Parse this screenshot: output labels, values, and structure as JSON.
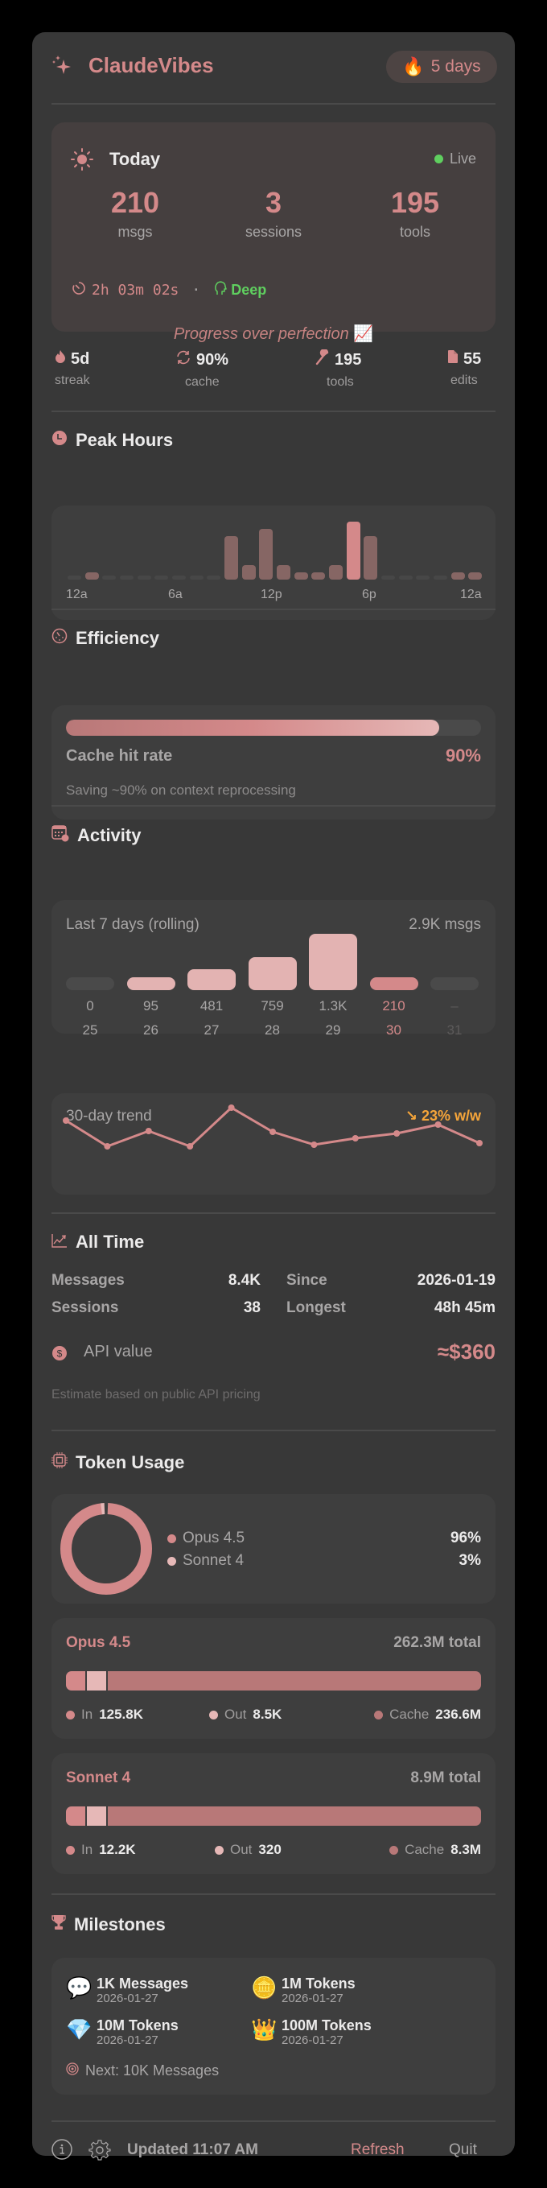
{
  "app": {
    "title": "ClaudeVibes",
    "streak_badge": "5 days",
    "icons": {
      "logo": "sparkles-icon",
      "streak": "fire-emoji"
    },
    "colors": {
      "accent": "#d4898a",
      "accent_light": "#e6b8b7",
      "accent_dark": "#b87878",
      "live": "#5fcf5f",
      "warning": "#f5a53a",
      "panel_bg": "#383838",
      "card_bg": "#3e3e3e"
    }
  },
  "today": {
    "title": "Today",
    "live_label": "Live",
    "stats": [
      {
        "value": "210",
        "label": "msgs"
      },
      {
        "value": "3",
        "label": "sessions"
      },
      {
        "value": "195",
        "label": "tools"
      }
    ],
    "duration": "2h 03m 02s",
    "separator": "·",
    "mode": "Deep",
    "quote": "Progress over perfection",
    "quote_emoji": "📈"
  },
  "mini_stats": [
    {
      "icon": "flame-icon",
      "value": "5d",
      "label": "streak"
    },
    {
      "icon": "refresh-icon",
      "value": "90%",
      "label": "cache"
    },
    {
      "icon": "wrench-icon",
      "value": "195",
      "label": "tools"
    },
    {
      "icon": "document-icon",
      "value": "55",
      "label": "edits"
    }
  ],
  "peak_hours": {
    "title": "Peak Hours",
    "axis_labels": [
      "12a",
      "6a",
      "12p",
      "6p",
      "12a"
    ],
    "values": [
      0,
      1,
      0,
      0,
      0,
      0,
      0,
      0,
      0,
      6,
      2,
      7,
      2,
      1,
      1,
      2,
      8,
      6,
      0,
      0,
      0,
      0,
      1,
      1
    ],
    "peak_index": 16
  },
  "efficiency": {
    "title": "Efficiency",
    "label": "Cache hit rate",
    "value": "90%",
    "percent": 90,
    "note": "Saving ~90% on context reprocessing"
  },
  "activity": {
    "title": "Activity",
    "week_label": "Last 7 days (rolling)",
    "week_total": "2.9K msgs",
    "days": [
      {
        "day": "25",
        "value": "0",
        "count": 0
      },
      {
        "day": "26",
        "value": "95",
        "count": 95
      },
      {
        "day": "27",
        "value": "481",
        "count": 481
      },
      {
        "day": "28",
        "value": "759",
        "count": 759
      },
      {
        "day": "29",
        "value": "1.3K",
        "count": 1300
      },
      {
        "day": "30",
        "value": "210",
        "count": 210,
        "today": true
      },
      {
        "day": "31",
        "value": "–",
        "count": 0,
        "future": true
      }
    ],
    "trend_label": "30-day trend",
    "trend_change": "↘ 23% w/w",
    "trend_points": [
      1392,
      1424,
      1405,
      1424,
      1376,
      1406,
      1422,
      1414,
      1408,
      1397,
      1420
    ]
  },
  "all_time": {
    "title": "All Time",
    "rows": [
      {
        "k1": "Messages",
        "v1": "8.4K",
        "k2": "Since",
        "v2": "2026-01-19"
      },
      {
        "k1": "Sessions",
        "v1": "38",
        "k2": "Longest",
        "v2": "48h 45m"
      }
    ],
    "api_label": "API value",
    "api_value": "≈$360",
    "api_note": "Estimate based on public API pricing"
  },
  "token_usage": {
    "title": "Token Usage",
    "models": [
      {
        "name": "Opus 4.5",
        "share": "96%",
        "pct": 96,
        "color": "#d4898a"
      },
      {
        "name": "Sonnet 4",
        "share": "3%",
        "pct": 3,
        "color": "#e6b8b7"
      }
    ],
    "details": [
      {
        "name": "Opus 4.5",
        "total": "262.3M total",
        "in": "125.8K",
        "out": "8.5K",
        "cache": "236.6M"
      },
      {
        "name": "Sonnet 4",
        "total": "8.9M total",
        "in": "12.2K",
        "out": "320",
        "cache": "8.3M"
      }
    ],
    "legend": {
      "in": "In",
      "out": "Out",
      "cache": "Cache"
    }
  },
  "milestones": {
    "title": "Milestones",
    "items": [
      {
        "emoji": "💬",
        "title": "1K Messages",
        "date": "2026-01-27"
      },
      {
        "emoji": "🪙",
        "title": "1M Tokens",
        "date": "2026-01-27"
      },
      {
        "emoji": "💎",
        "title": "10M Tokens",
        "date": "2026-01-27"
      },
      {
        "emoji": "👑",
        "title": "100M Tokens",
        "date": "2026-01-27"
      }
    ],
    "next": "Next: 10K Messages"
  },
  "footer": {
    "updated": "Updated 11:07 AM",
    "refresh": "Refresh",
    "quit": "Quit"
  }
}
